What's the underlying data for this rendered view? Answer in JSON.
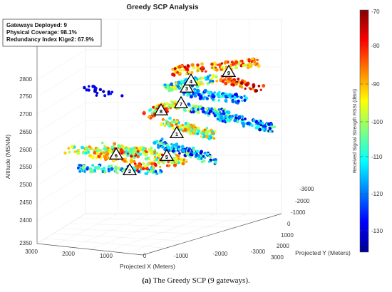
{
  "chart_data": {
    "type": "scatter",
    "title": "Greedy SCP Analysis",
    "xlabel": "Projected X (Meters)",
    "ylabel": "Projected Y (Meters)",
    "zlabel": "Altitude (MSNM)",
    "x_ticks": [
      "3000",
      "2000",
      "1000",
      "0",
      "-1000",
      "-2000",
      "-3000"
    ],
    "y_ticks": [
      "-3000",
      "-2000",
      "-1000",
      "0",
      "1000",
      "2000",
      "3000"
    ],
    "z_ticks": [
      "2350",
      "2400",
      "2450",
      "2500",
      "2550",
      "2600",
      "2650",
      "2700",
      "2750",
      "2800"
    ],
    "colorbar": {
      "label": "Received Signal Strength RSSI (dBm)",
      "ticks": [
        "-70",
        "-80",
        "-90",
        "-100",
        "-110",
        "-120",
        "-130"
      ],
      "range": [
        -135,
        -70
      ],
      "colormap": "jet"
    },
    "info_box": [
      "Gateways Deployed: 9",
      "Physical Coverage: 98.1%",
      "Redundancy Index K\\ge2: 67.9%"
    ],
    "gateways": [
      {
        "id": "1"
      },
      {
        "id": "2"
      },
      {
        "id": "3"
      },
      {
        "id": "4"
      },
      {
        "id": "5"
      },
      {
        "id": "6"
      },
      {
        "id": "7"
      },
      {
        "id": "8"
      },
      {
        "id": "9"
      }
    ],
    "grid": true
  },
  "caption": {
    "label": "(a)",
    "text": " The Greedy SCP (9 gateways)."
  }
}
